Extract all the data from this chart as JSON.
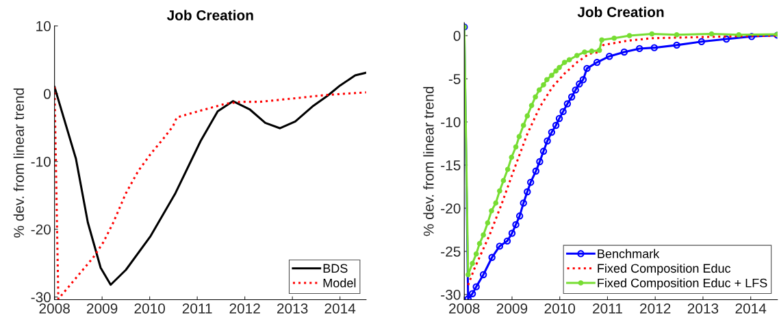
{
  "chart_data": [
    {
      "type": "line",
      "title": "Job Creation",
      "ylabel": "% dev. from linear trend",
      "xlim": [
        2008,
        2014.55
      ],
      "ylim": [
        -30.4,
        10
      ],
      "xticks": [
        2008,
        2009,
        2010,
        2011,
        2012,
        2013,
        2014
      ],
      "yticks": [
        -30,
        -20,
        -10,
        0,
        10
      ],
      "grid": false,
      "legend": "bottom right",
      "series": [
        {
          "name": "BDS",
          "color": "#000000",
          "line_style": "solid",
          "marker": "none",
          "x": [
            2008,
            2008.45,
            2008.7,
            2008.97,
            2009.18,
            2009.5,
            2010.02,
            2010.54,
            2011.07,
            2011.43,
            2011.75,
            2012.1,
            2012.43,
            2012.74,
            2013.06,
            2013.42,
            2013.74,
            2014,
            2014.32,
            2014.55
          ],
          "values": [
            1,
            -9.6,
            -19,
            -25.7,
            -28.2,
            -26,
            -21,
            -14.7,
            -7,
            -2.6,
            -1.1,
            -2.3,
            -4.3,
            -5.1,
            -4.1,
            -1.9,
            -0.3,
            1.2,
            2.7,
            3.1
          ]
        },
        {
          "name": "Model",
          "color": "#ff0000",
          "line_style": "dotted",
          "marker": "none",
          "x": [
            2008,
            2008.08,
            2008.81,
            2009.02,
            2009.23,
            2009.5,
            2009.76,
            2010.02,
            2010.28,
            2010.49,
            2010.57,
            2011.07,
            2011.59,
            2011.9,
            2012.32,
            2013.16,
            2013.69,
            2014.55
          ],
          "values": [
            1,
            -30.3,
            -24.2,
            -22,
            -19.1,
            -14.7,
            -11.4,
            -8.9,
            -6.7,
            -4.8,
            -3.5,
            -2.5,
            -1.5,
            -1.2,
            -1.2,
            -0.6,
            -0.2,
            0.2
          ]
        }
      ]
    },
    {
      "type": "line",
      "title": "Job Creation",
      "ylabel": "% dev. from linear trend",
      "xlim": [
        2008,
        2014.56
      ],
      "ylim": [
        -30.6,
        1.5
      ],
      "xticks": [
        2008,
        2009,
        2010,
        2011,
        2012,
        2013,
        2014
      ],
      "yticks": [
        -30,
        -25,
        -20,
        -15,
        -10,
        -5,
        0
      ],
      "grid": false,
      "legend": "bottom right",
      "series": [
        {
          "name": "Benchmark",
          "color": "#0000ff",
          "line_style": "solid",
          "marker": "circle",
          "x": [
            2008,
            2008.08,
            2008.17,
            2008.25,
            2008.4,
            2008.58,
            2008.74,
            2008.9,
            2009.0,
            2009.08,
            2009.16,
            2009.24,
            2009.32,
            2009.39,
            2009.5,
            2009.58,
            2009.66,
            2009.74,
            2009.83,
            2009.92,
            2009.99,
            2010.07,
            2010.16,
            2010.25,
            2010.33,
            2010.41,
            2010.49,
            2010.57,
            2010.78,
            2011.04,
            2011.35,
            2011.67,
            2011.98,
            2012.45,
            2012.97,
            2013.49,
            2014.02,
            2014.56
          ],
          "values": [
            1,
            -30.5,
            -29.9,
            -29.1,
            -27.7,
            -25.7,
            -24.4,
            -23.8,
            -22.9,
            -21.9,
            -20.9,
            -19.4,
            -18.1,
            -17.0,
            -15.7,
            -14.6,
            -13.4,
            -12.2,
            -11.2,
            -10.4,
            -9.6,
            -8.8,
            -7.9,
            -7.1,
            -6.3,
            -5.6,
            -5.1,
            -3.8,
            -3.1,
            -2.4,
            -1.9,
            -1.5,
            -1.4,
            -1.1,
            -0.7,
            -0.4,
            -0.1,
            0.05
          ]
        },
        {
          "name": "Fixed Composition Educ",
          "color": "#ff0000",
          "line_style": "dotted",
          "marker": "none",
          "x": [
            2008.08,
            2008.22,
            2008.53,
            2008.79,
            2009.05,
            2009.32,
            2009.58,
            2009.84,
            2010.1,
            2010.36,
            2010.62,
            2010.83,
            2010.91,
            2011.4,
            2011.93,
            2012.71,
            2013.49,
            2014.56
          ],
          "values": [
            -28.9,
            -26.9,
            -23.1,
            -19.4,
            -15.4,
            -11.4,
            -8.3,
            -6.0,
            -4.4,
            -3.1,
            -2.1,
            -1.9,
            -1.1,
            -0.6,
            -0.3,
            -0.2,
            -0.1,
            0
          ]
        },
        {
          "name": "Fixed Composition Educ + LFS",
          "color": "#77dd33",
          "line_style": "solid",
          "marker": "circle",
          "x": [
            2008,
            2008.08,
            2008.17,
            2008.25,
            2008.32,
            2008.4,
            2008.49,
            2008.57,
            2008.66,
            2008.74,
            2008.82,
            2008.91,
            2008.99,
            2009.08,
            2009.15,
            2009.24,
            2009.32,
            2009.41,
            2009.49,
            2009.57,
            2009.66,
            2009.73,
            2009.83,
            2009.92,
            2009.99,
            2010.1,
            2010.2,
            2010.36,
            2010.52,
            2010.67,
            2010.83,
            2010.88,
            2011.14,
            2011.46,
            2011.93,
            2012.45,
            2013.18,
            2013.75,
            2014.56
          ],
          "values": [
            1,
            -27.7,
            -26.4,
            -25.3,
            -24.1,
            -23.1,
            -21.7,
            -20.3,
            -19.4,
            -18.0,
            -16.8,
            -15.5,
            -14.1,
            -12.9,
            -11.7,
            -10.4,
            -9.3,
            -8.1,
            -7.1,
            -6.3,
            -5.7,
            -5.1,
            -4.6,
            -4.1,
            -3.7,
            -3.1,
            -2.8,
            -2.3,
            -1.9,
            -1.8,
            -1.7,
            -0.5,
            -0.3,
            0,
            0.2,
            0.1,
            0.2,
            0.1,
            0.15
          ]
        }
      ]
    }
  ]
}
